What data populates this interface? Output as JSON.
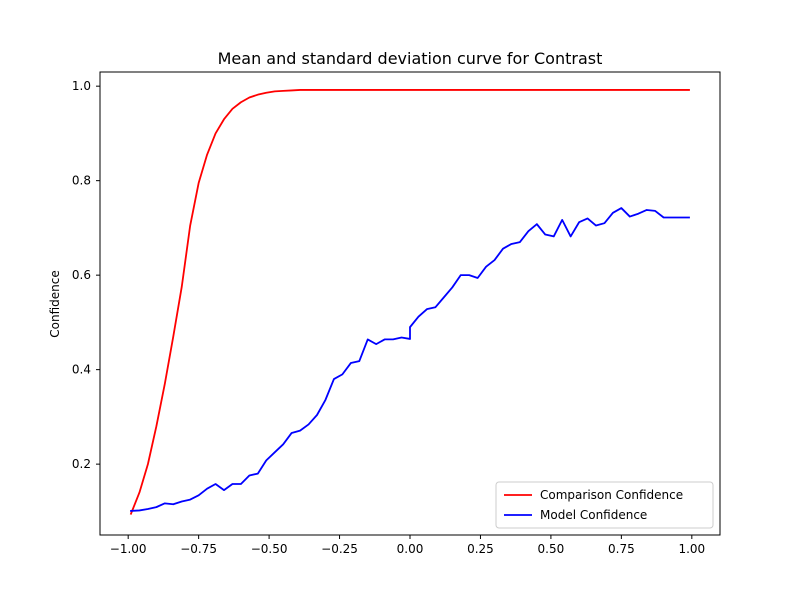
{
  "chart_data": {
    "type": "line",
    "title": "Mean and standard deviation curve for Contrast",
    "xlabel": "",
    "ylabel": "Confidence",
    "xlim": [
      -1.1,
      1.1
    ],
    "ylim": [
      0.05,
      1.03
    ],
    "xticks": [
      -1.0,
      -0.75,
      -0.5,
      -0.25,
      0.0,
      0.25,
      0.5,
      0.75,
      1.0
    ],
    "xtick_labels": [
      "−1.00",
      "−0.75",
      "−0.50",
      "−0.25",
      "0.00",
      "0.25",
      "0.50",
      "0.75",
      "1.00"
    ],
    "yticks": [
      0.2,
      0.4,
      0.6,
      0.8,
      1.0
    ],
    "ytick_labels": [
      "0.2",
      "0.4",
      "0.6",
      "0.8",
      "1.0"
    ],
    "grid": false,
    "legend_position": "bottom-right",
    "series": [
      {
        "name": "Comparison Confidence",
        "color": "#ff0000",
        "x": [
          -0.99,
          -0.96,
          -0.93,
          -0.9,
          -0.87,
          -0.84,
          -0.81,
          -0.78,
          -0.75,
          -0.72,
          -0.69,
          -0.66,
          -0.63,
          -0.6,
          -0.57,
          -0.54,
          -0.51,
          -0.48,
          -0.45,
          -0.42,
          -0.39,
          -0.36,
          -0.33,
          -0.3,
          -0.2,
          0.0,
          0.25,
          0.5,
          0.75,
          0.99
        ],
        "y": [
          0.095,
          0.14,
          0.2,
          0.28,
          0.37,
          0.47,
          0.575,
          0.705,
          0.795,
          0.855,
          0.9,
          0.93,
          0.952,
          0.966,
          0.976,
          0.982,
          0.986,
          0.989,
          0.99,
          0.991,
          0.992,
          0.992,
          0.992,
          0.992,
          0.992,
          0.992,
          0.992,
          0.992,
          0.992,
          0.992
        ]
      },
      {
        "name": "Model Confidence",
        "color": "#0000ff",
        "x": [
          -0.99,
          -0.96,
          -0.93,
          -0.9,
          -0.87,
          -0.84,
          -0.81,
          -0.78,
          -0.75,
          -0.72,
          -0.69,
          -0.66,
          -0.63,
          -0.6,
          -0.57,
          -0.54,
          -0.51,
          -0.48,
          -0.45,
          -0.42,
          -0.39,
          -0.36,
          -0.33,
          -0.3,
          -0.27,
          -0.24,
          -0.21,
          -0.18,
          -0.15,
          -0.12,
          -0.09,
          -0.06,
          -0.03,
          0.0,
          0.0,
          0.03,
          0.06,
          0.09,
          0.12,
          0.15,
          0.18,
          0.21,
          0.24,
          0.27,
          0.3,
          0.33,
          0.36,
          0.39,
          0.42,
          0.45,
          0.48,
          0.51,
          0.54,
          0.57,
          0.6,
          0.63,
          0.66,
          0.69,
          0.72,
          0.75,
          0.78,
          0.81,
          0.84,
          0.87,
          0.9,
          0.93,
          0.96,
          0.99
        ],
        "y": [
          0.101,
          0.102,
          0.105,
          0.109,
          0.117,
          0.115,
          0.121,
          0.125,
          0.134,
          0.148,
          0.158,
          0.145,
          0.158,
          0.158,
          0.176,
          0.18,
          0.208,
          0.225,
          0.242,
          0.266,
          0.271,
          0.284,
          0.304,
          0.336,
          0.38,
          0.39,
          0.414,
          0.418,
          0.464,
          0.454,
          0.464,
          0.464,
          0.468,
          0.465,
          0.49,
          0.512,
          0.528,
          0.532,
          0.553,
          0.574,
          0.6,
          0.6,
          0.594,
          0.618,
          0.632,
          0.656,
          0.666,
          0.67,
          0.693,
          0.708,
          0.686,
          0.682,
          0.717,
          0.682,
          0.712,
          0.72,
          0.705,
          0.71,
          0.732,
          0.742,
          0.724,
          0.73,
          0.738,
          0.736,
          0.722,
          0.722,
          0.722,
          0.722
        ]
      }
    ]
  }
}
